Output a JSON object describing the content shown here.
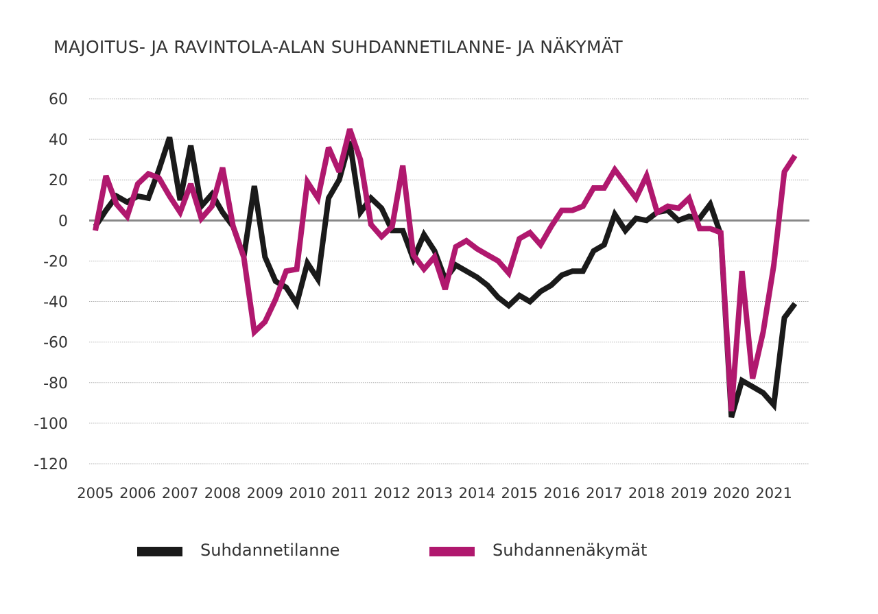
{
  "chart_data": {
    "type": "line",
    "title": "MAJOITUS- JA RAVINTOLA-ALAN SUHDANNETILANNE- JA NÄKYMÄT",
    "xlabel": "",
    "ylabel": "",
    "ylim": [
      -120,
      60
    ],
    "yticks": [
      "60",
      "40",
      "20",
      "0",
      "-20",
      "-40",
      "-60",
      "-80",
      "-100",
      "-120"
    ],
    "xticks": [
      "2005",
      "2006",
      "2007",
      "2008",
      "2009",
      "2010",
      "2011",
      "2012",
      "2013",
      "2014",
      "2015",
      "2016",
      "2017",
      "2018",
      "2019",
      "2020",
      "2021"
    ],
    "grid": true,
    "legend_position": "bottom",
    "colors": {
      "Suhdannetilanne": "#1a1a1a",
      "Suhdannenäkymät": "#b0186e",
      "zero_line": "#888888",
      "grid": "#b0b0b0"
    },
    "series": [
      {
        "name": "Suhdannetilanne",
        "x": [
          2005.0,
          2005.25,
          2005.5,
          2005.75,
          2006.0,
          2006.25,
          2006.5,
          2006.75,
          2007.0,
          2007.25,
          2007.5,
          2007.75,
          2008.0,
          2008.25,
          2008.5,
          2008.75,
          2009.0,
          2009.25,
          2009.5,
          2009.75,
          2010.0,
          2010.25,
          2010.5,
          2010.75,
          2011.0,
          2011.25,
          2011.5,
          2011.75,
          2012.0,
          2012.25,
          2012.5,
          2012.75,
          2013.0,
          2013.25,
          2013.5,
          2013.75,
          2014.0,
          2014.25,
          2014.5,
          2014.75,
          2015.0,
          2015.25,
          2015.5,
          2015.75,
          2016.0,
          2016.25,
          2016.5,
          2016.75,
          2017.0,
          2017.25,
          2017.5,
          2017.75,
          2018.0,
          2018.25,
          2018.5,
          2018.75,
          2019.0,
          2019.25,
          2019.5,
          2019.75,
          2020.0,
          2020.25,
          2020.5,
          2020.75,
          2021.0,
          2021.25,
          2021.5
        ],
        "values": [
          -3,
          5,
          12,
          9,
          12,
          11,
          25,
          41,
          10,
          37,
          7,
          13,
          4,
          -3,
          -18,
          17,
          -18,
          -30,
          -33,
          -41,
          -21,
          -29,
          11,
          20,
          39,
          4,
          11,
          6,
          -5,
          -5,
          -19,
          -7,
          -15,
          -29,
          -22,
          -25,
          -28,
          -32,
          -38,
          -42,
          -37,
          -40,
          -35,
          -32,
          -27,
          -25,
          -25,
          -15,
          -12,
          3,
          -5,
          1,
          0,
          4,
          5,
          0,
          2,
          1,
          8,
          -7,
          -97,
          -79,
          -82,
          -85,
          -91,
          -48,
          -41
        ]
      },
      {
        "name": "Suhdannenäkymät",
        "x": [
          2005.0,
          2005.25,
          2005.5,
          2005.75,
          2006.0,
          2006.25,
          2006.5,
          2006.75,
          2007.0,
          2007.25,
          2007.5,
          2007.75,
          2008.0,
          2008.25,
          2008.5,
          2008.75,
          2009.0,
          2009.25,
          2009.5,
          2009.75,
          2010.0,
          2010.25,
          2010.5,
          2010.75,
          2011.0,
          2011.25,
          2011.5,
          2011.75,
          2012.0,
          2012.25,
          2012.5,
          2012.75,
          2013.0,
          2013.25,
          2013.5,
          2013.75,
          2014.0,
          2014.25,
          2014.5,
          2014.75,
          2015.0,
          2015.25,
          2015.5,
          2015.75,
          2016.0,
          2016.25,
          2016.5,
          2016.75,
          2017.0,
          2017.25,
          2017.5,
          2017.75,
          2018.0,
          2018.25,
          2018.5,
          2018.75,
          2019.0,
          2019.25,
          2019.5,
          2019.75,
          2020.0,
          2020.25,
          2020.5,
          2020.75,
          2021.0,
          2021.25,
          2021.5
        ],
        "values": [
          -5,
          22,
          8,
          2,
          18,
          23,
          21,
          12,
          4,
          18,
          1,
          7,
          26,
          -3,
          -18,
          -55,
          -50,
          -39,
          -25,
          -24,
          19,
          11,
          36,
          24,
          45,
          30,
          -2,
          -8,
          -3,
          27,
          -17,
          -24,
          -18,
          -34,
          -13,
          -10,
          -14,
          -17,
          -20,
          -26,
          -9,
          -6,
          -12,
          -3,
          5,
          5,
          7,
          16,
          16,
          25,
          18,
          11,
          22,
          4,
          7,
          6,
          11,
          -4,
          -4,
          -6,
          -94,
          -25,
          -78,
          -55,
          -22,
          24,
          32
        ]
      }
    ]
  }
}
